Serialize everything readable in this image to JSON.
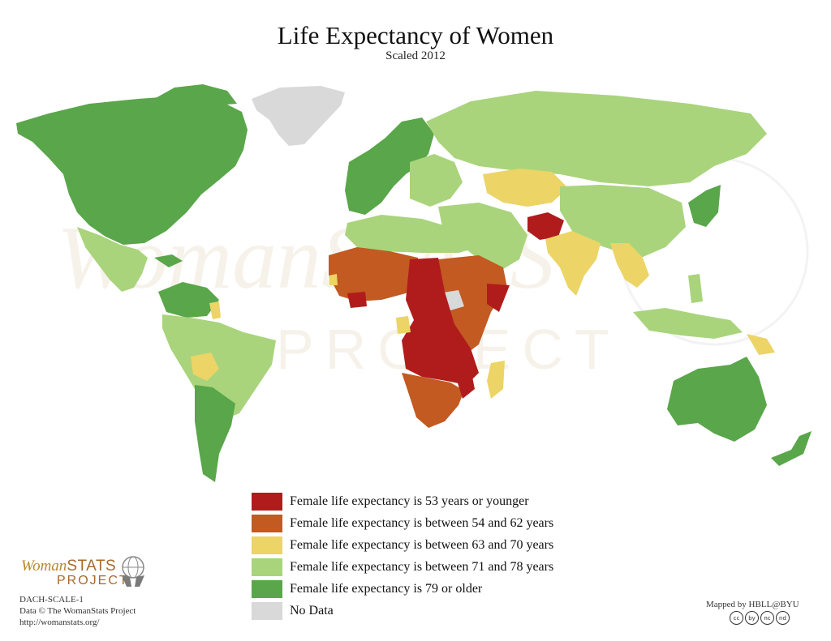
{
  "title": "Life Expectancy of Women",
  "subtitle": "Scaled 2012",
  "legend": [
    {
      "label": "Female life expectancy is 53 years or younger",
      "color": "#b01c1c"
    },
    {
      "label": "Female life expectancy is between 54 and 62 years",
      "color": "#c25a22"
    },
    {
      "label": "Female life expectancy is between 63 and 70 years",
      "color": "#ecd466"
    },
    {
      "label": "Female life expectancy is between 71 and 78 years",
      "color": "#a9d47c"
    },
    {
      "label": "Female life expectancy is 79 or older",
      "color": "#5aa64a"
    },
    {
      "label": "No Data",
      "color": "#d9d9d9"
    }
  ],
  "watermark": {
    "line1": "WomanSTATS",
    "line2": "PROJECT"
  },
  "brand": {
    "word1": "Woman",
    "word2": "STATS",
    "word3": "PROJECT"
  },
  "credits": {
    "code": "DACH-SCALE-1",
    "data": "Data © The WomanStats Project",
    "url": "http://womanstats.org/"
  },
  "mapped_by": "Mapped by HBLL@BYU",
  "license_badges": [
    "cc",
    "by",
    "nc",
    "nd"
  ]
}
